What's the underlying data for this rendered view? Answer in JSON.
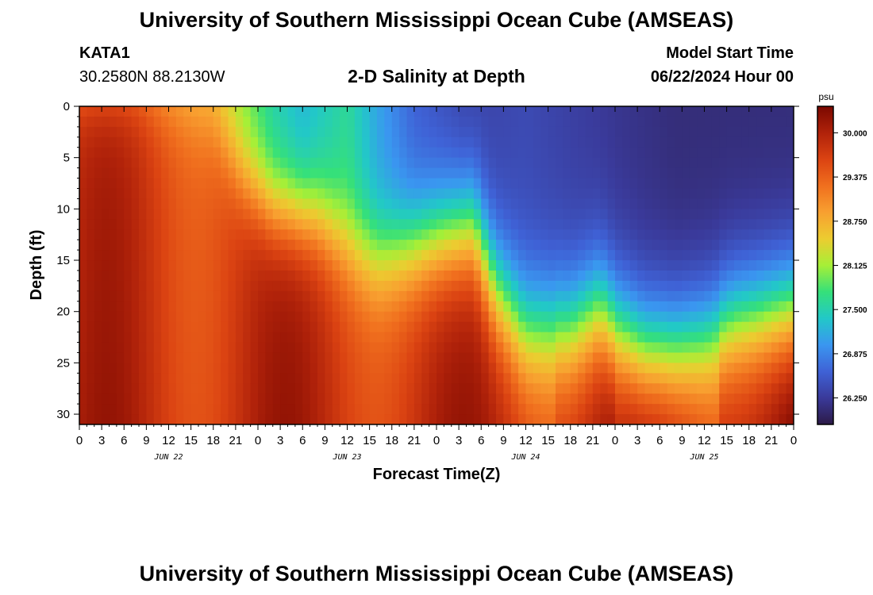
{
  "header": {
    "title": "University of Southern Mississippi Ocean Cube (AMSEAS)",
    "station_id": "KATA1",
    "station_coords": "30.2580N  88.2130W",
    "plot_title": "2-D Salinity at Depth",
    "model_start_label": "Model Start Time",
    "model_start_value": "06/22/2024 Hour 00"
  },
  "footer": {
    "title": "University of Southern Mississippi Ocean Cube (AMSEAS)"
  },
  "colors": {
    "scale": [
      "#2c1a47",
      "#3a3a9a",
      "#3f62d6",
      "#3a96f0",
      "#22c8c8",
      "#35e07a",
      "#a6ef37",
      "#eccc30",
      "#f8a030",
      "#f06f1e",
      "#db4312",
      "#b0220a",
      "#7a0800"
    ]
  },
  "chart_data": {
    "type": "heatmap",
    "title": "2-D Salinity at Depth",
    "xlabel": "Forecast Time(Z)",
    "ylabel": "Depth (ft)",
    "x_tick_labels": [
      "0",
      "3",
      "6",
      "9",
      "12",
      "15",
      "18",
      "21",
      "0",
      "3",
      "6",
      "9",
      "12",
      "15",
      "18",
      "21",
      "0",
      "3",
      "6",
      "9",
      "12",
      "15",
      "18",
      "21",
      "0",
      "3",
      "6",
      "9",
      "12",
      "15",
      "18",
      "21",
      "0"
    ],
    "day_labels": [
      "JUN 22",
      "JUN 23",
      "JUN 24",
      "JUN 25"
    ],
    "xlim_hours": [
      0,
      96
    ],
    "ylim_ft": [
      0,
      31
    ],
    "y_ticks": [
      0,
      5,
      10,
      15,
      20,
      25,
      30
    ],
    "y_tick_labels": [
      "0",
      "5",
      "10",
      "15",
      "20",
      "25",
      "30"
    ],
    "colorbar": {
      "unit": "psu",
      "range": [
        25.875,
        30.375
      ],
      "tick_values": [
        30.0,
        29.375,
        28.75,
        28.125,
        27.5,
        26.875,
        26.25
      ],
      "tick_labels": [
        "30.000",
        "29.375",
        "28.750",
        "28.125",
        "27.500",
        "26.875",
        "26.250"
      ]
    }
  }
}
